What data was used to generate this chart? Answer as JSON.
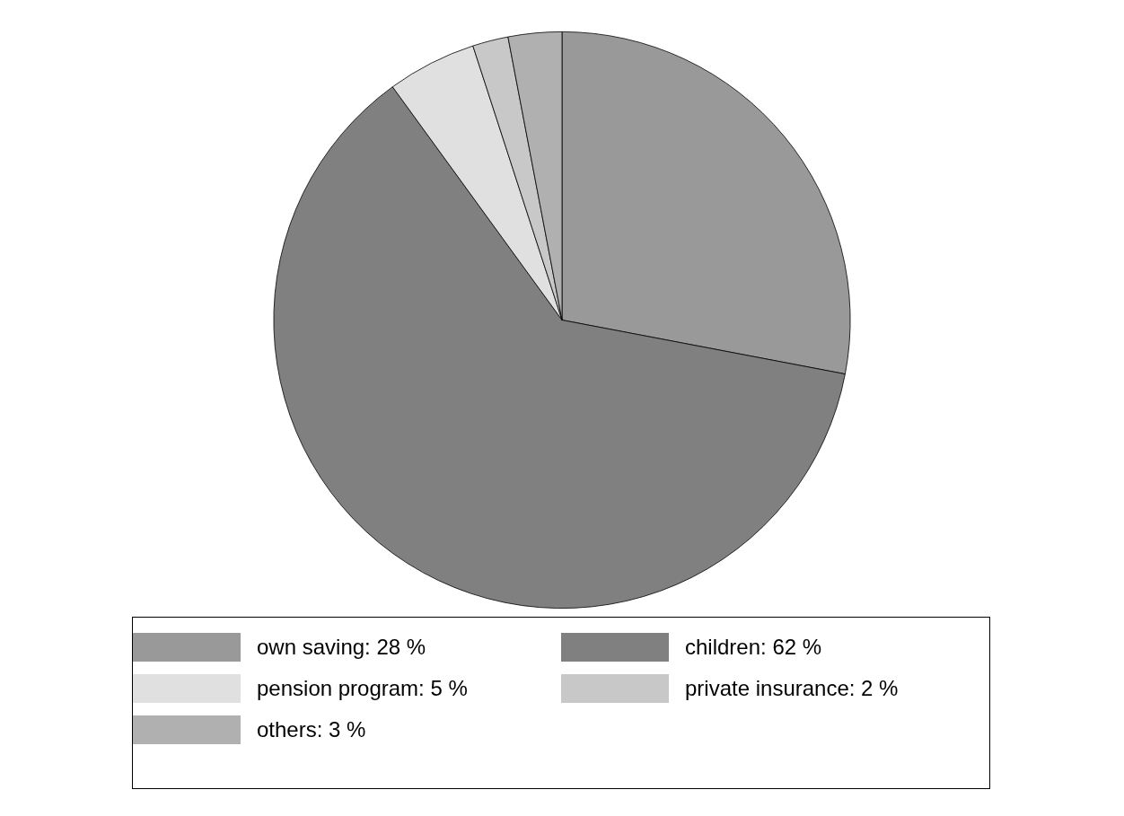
{
  "chart_data": {
    "type": "pie",
    "categories": [
      "own saving",
      "children",
      "pension program",
      "private insurance",
      "others"
    ],
    "values": [
      28,
      62,
      5,
      2,
      3
    ],
    "value_labels": [
      "28 %",
      "62 %",
      "5 %",
      "2 %",
      "3 %"
    ],
    "colors": [
      "#999999",
      "#808080",
      "#e0e0e0",
      "#c8c8c8",
      "#b0b0b0"
    ],
    "legend": "bottom"
  }
}
